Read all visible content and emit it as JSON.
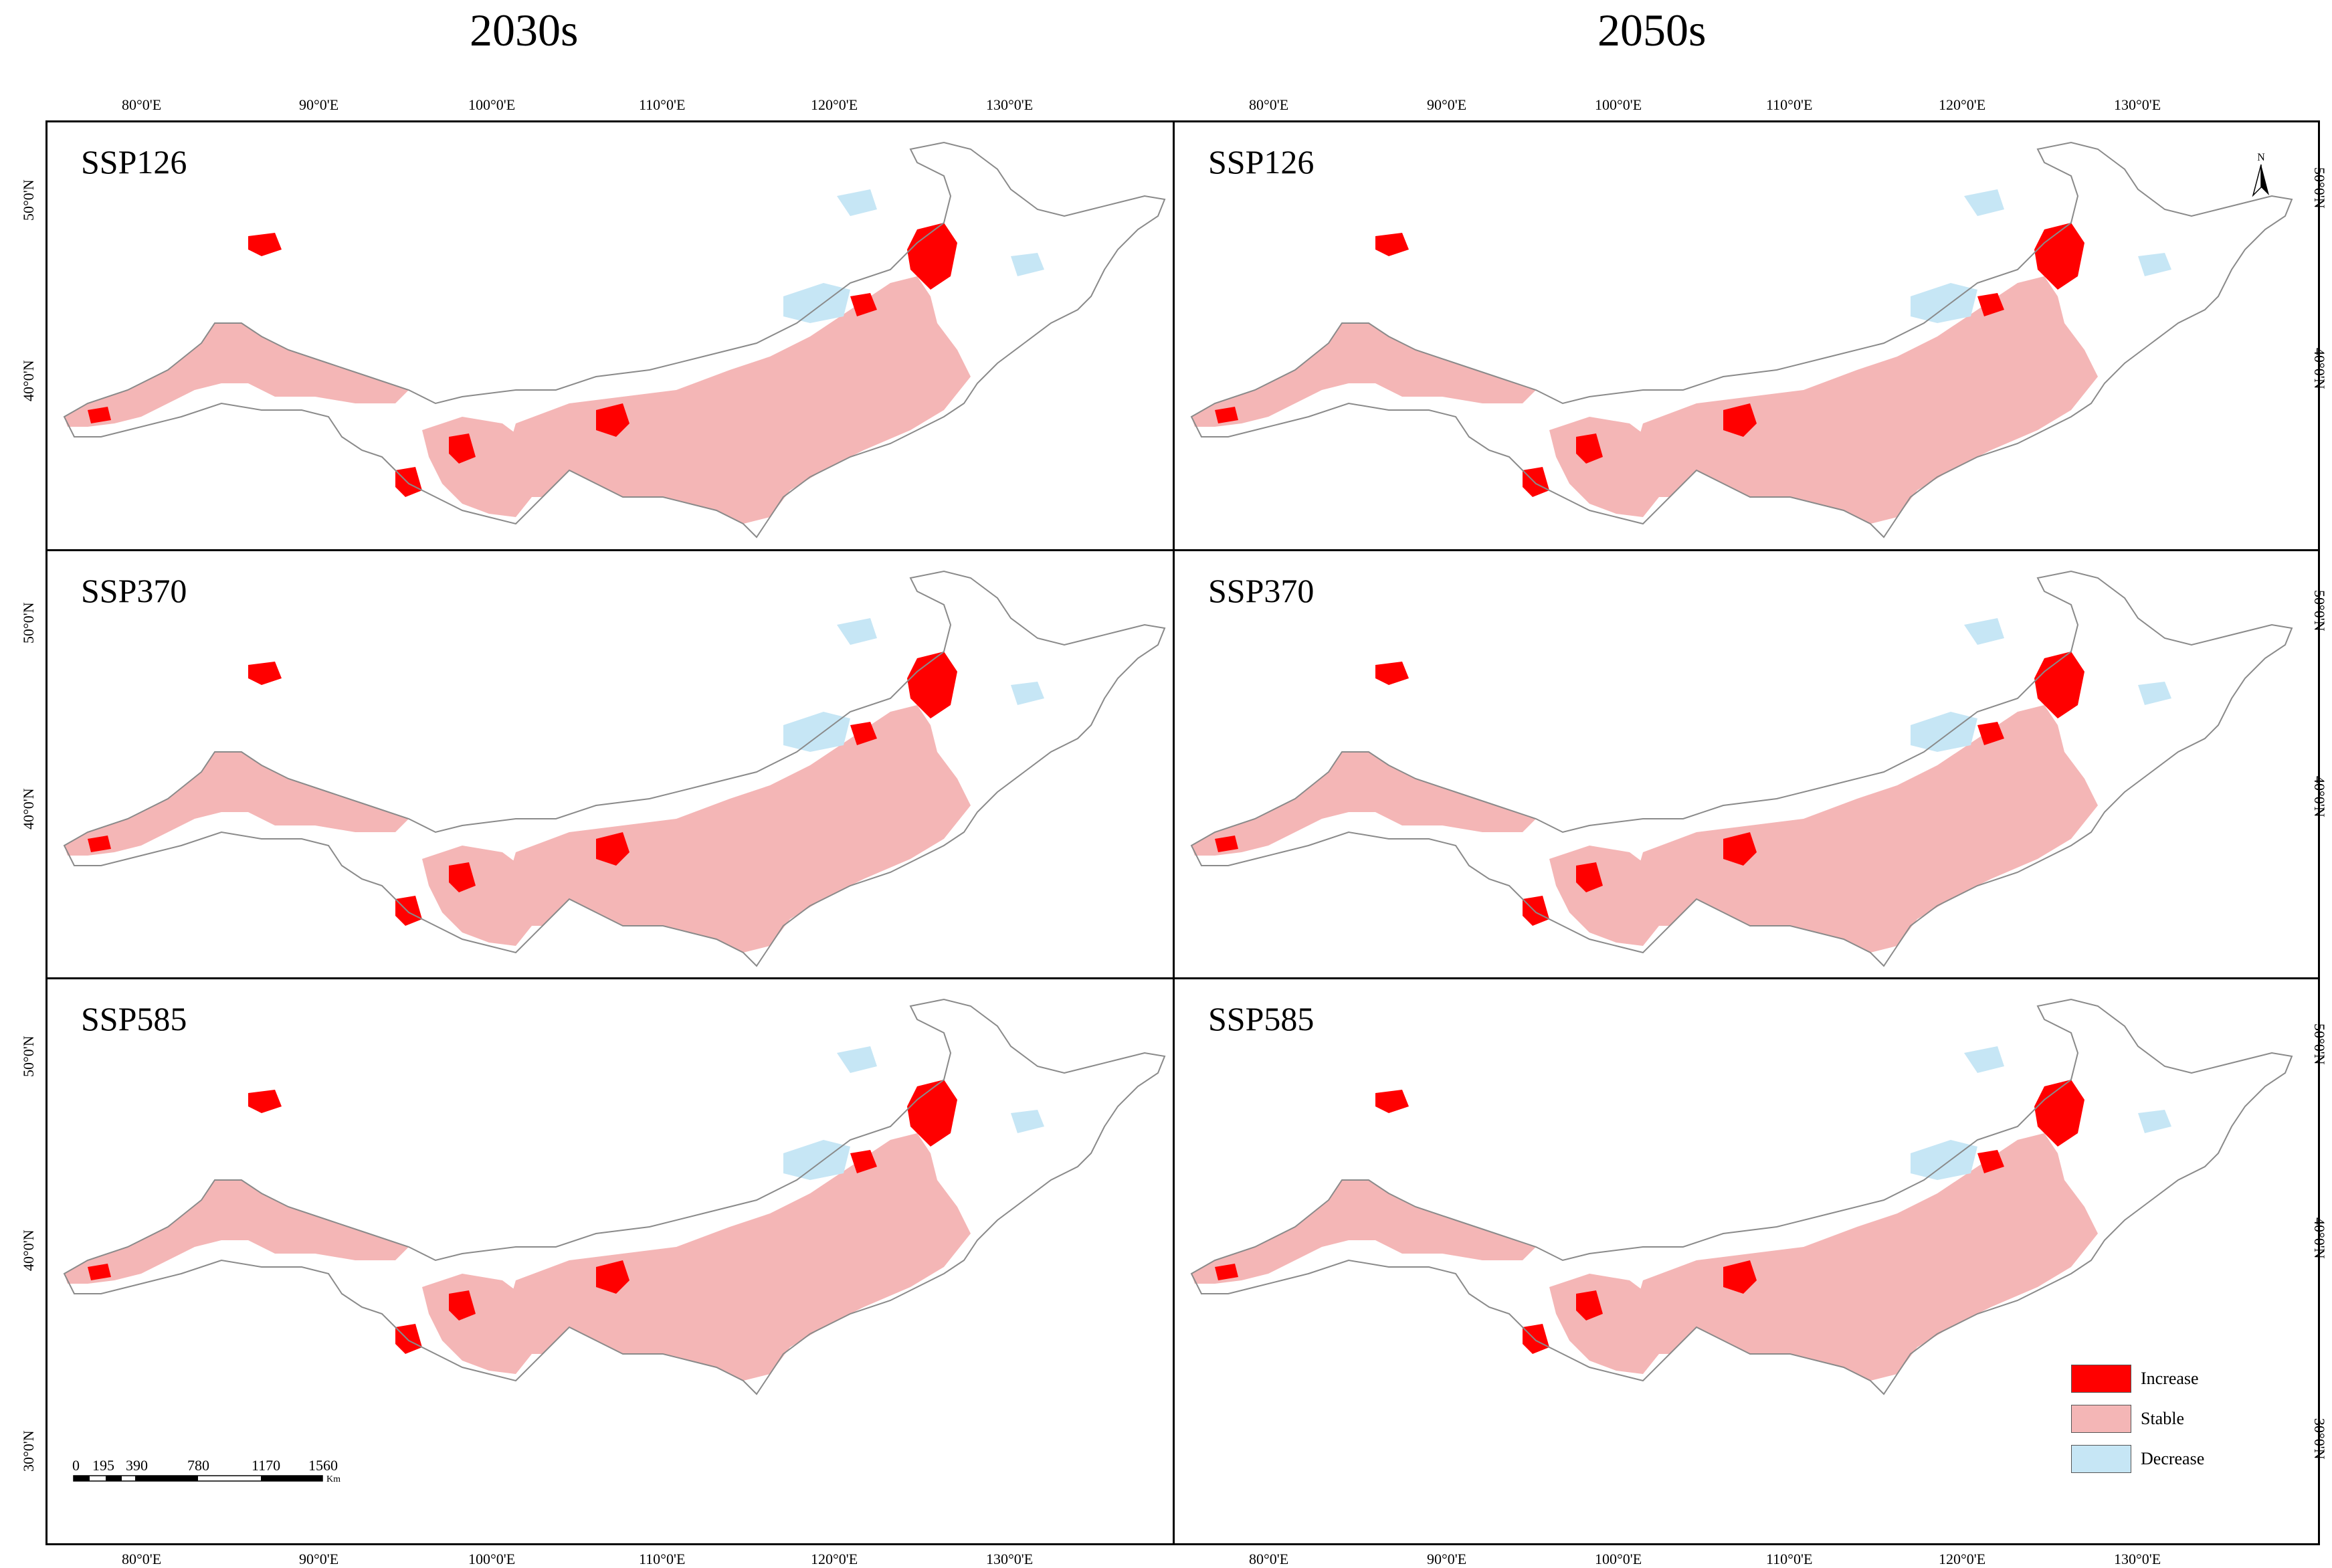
{
  "columns": [
    "2030s",
    "2050s"
  ],
  "rows": [
    "SSP126",
    "SSP370",
    "SSP585"
  ],
  "lon_ticks": [
    "80°0'E",
    "90°0'E",
    "100°0'E",
    "110°0'E",
    "120°0'E",
    "130°0'E"
  ],
  "lat_ticks": [
    "50°0'N",
    "40°0'N",
    "30°0'N"
  ],
  "legend": [
    {
      "label": "Increase",
      "color": "#ff0000"
    },
    {
      "label": "Stable",
      "color": "#f4b6b6"
    },
    {
      "label": "Decrease",
      "color": "#c6e6f5"
    }
  ],
  "scale": {
    "ticks": [
      "0",
      "195",
      "390",
      "780",
      "1170",
      "1560"
    ],
    "unit": "Km"
  },
  "north_label": "N",
  "colors": {
    "outline": "#8a8a8a",
    "increase": "#ff0000",
    "stable": "#f4b6b6",
    "decrease": "#c6e6f5"
  }
}
